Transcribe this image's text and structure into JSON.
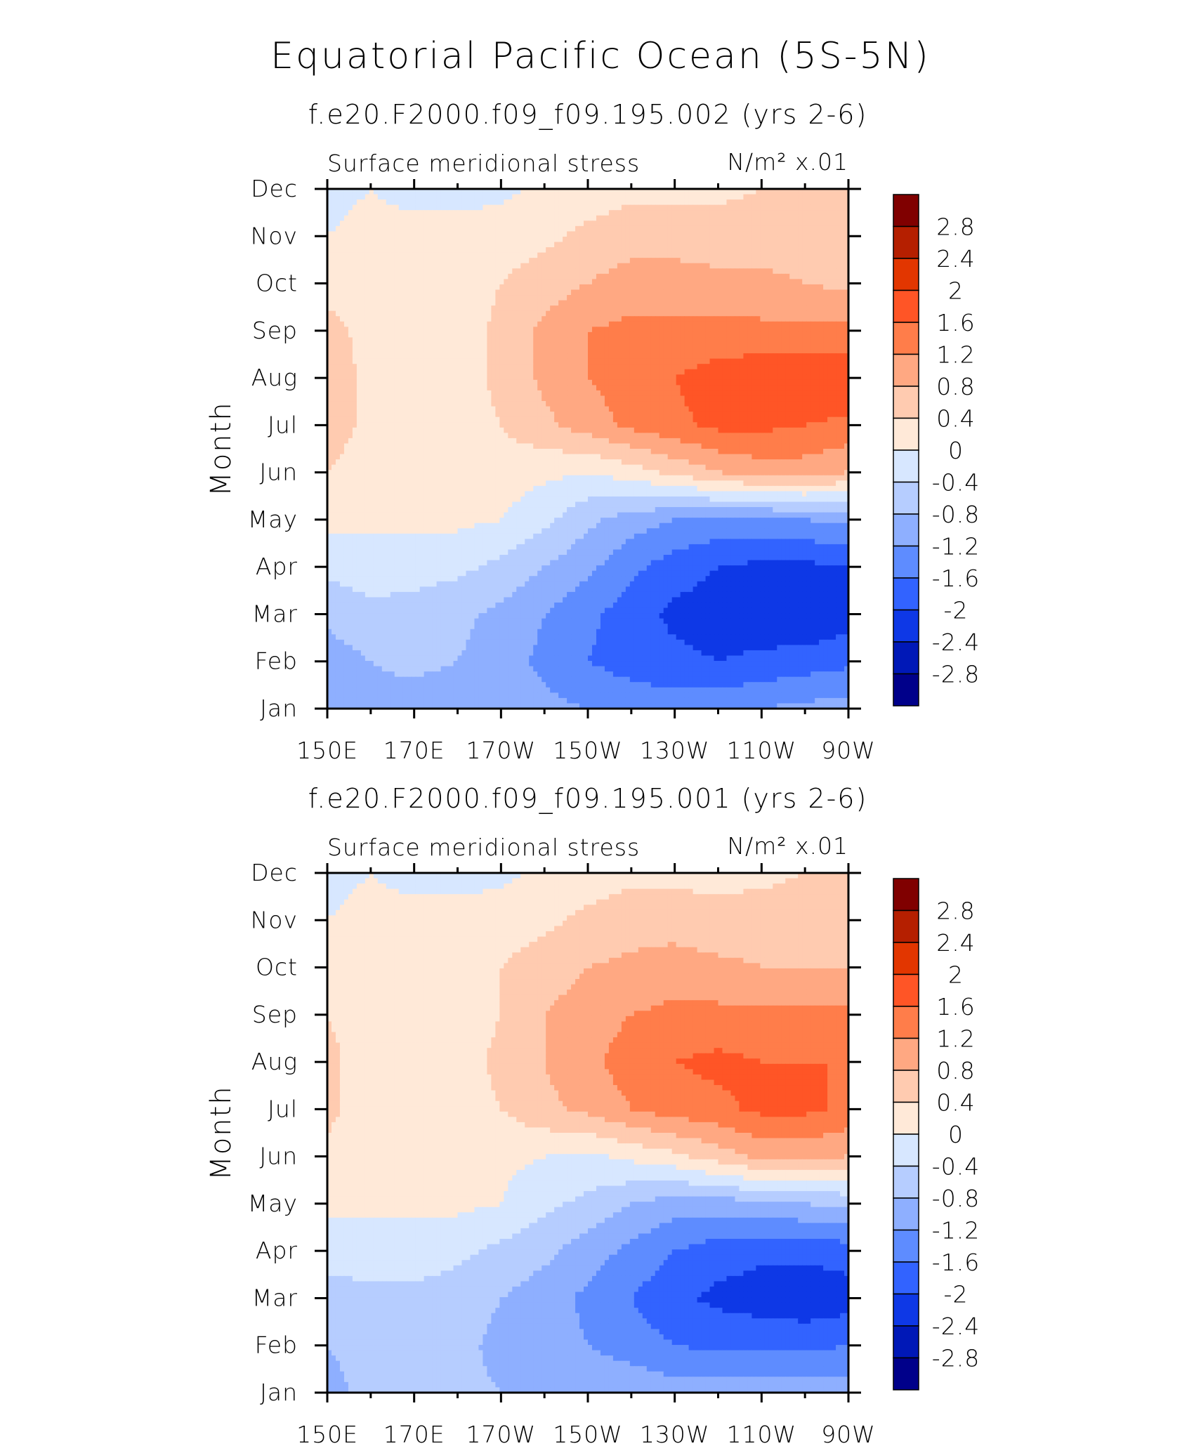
{
  "figure": {
    "title": "Equatorial Pacific Ocean (5S-5N)"
  },
  "colorbar_levels": [
    "2.8",
    "2.4",
    "2",
    "1.6",
    "1.2",
    "0.8",
    "0.4",
    "0",
    "-0.4",
    "-0.8",
    "-1.2",
    "-1.6",
    "-2",
    "-2.4",
    "-2.8"
  ],
  "colors": [
    "#800000",
    "#b51f00",
    "#e23600",
    "#ff5526",
    "#ff7d4a",
    "#ffa882",
    "#ffcbb0",
    "#ffe9d8",
    "#d7e7ff",
    "#b6cdff",
    "#8eafff",
    "#5e8cff",
    "#3263ff",
    "#0e38e6",
    "#0018b7",
    "#00008a"
  ],
  "chart_data": [
    {
      "type": "heatmap",
      "title": "f.e20.F2000.f09_f09.195.002 (yrs 2-6)",
      "left_label": "Surface meridional stress",
      "right_label": "N/m² x.01",
      "xlabel": "",
      "ylabel": "Month",
      "x_ticks": [
        "150E",
        "170E",
        "170W",
        "150W",
        "130W",
        "110W",
        "90W"
      ],
      "y_ticks": [
        "Jan",
        "Feb",
        "Mar",
        "Apr",
        "May",
        "Jun",
        "Jul",
        "Aug",
        "Sep",
        "Oct",
        "Nov",
        "Dec"
      ],
      "x_range": [
        "150E",
        "90W"
      ],
      "y_range": [
        "Jan",
        "Dec"
      ],
      "colorbar": [
        -2.8,
        -2.4,
        -2,
        -1.6,
        -1.2,
        -0.8,
        -0.4,
        0,
        0.4,
        0.8,
        1.2,
        1.6,
        2,
        2.4,
        2.8
      ],
      "grid_x_lon": [
        150,
        160,
        170,
        180,
        190,
        200,
        210,
        220,
        230,
        240,
        250,
        260,
        270
      ],
      "months": [
        "Jan",
        "Feb",
        "Mar",
        "Apr",
        "May",
        "Jun",
        "Jul",
        "Aug",
        "Sep",
        "Oct",
        "Nov",
        "Dec"
      ],
      "values": [
        [
          -1.1,
          -0.9,
          -1.0,
          -1.0,
          -0.9,
          -1.1,
          -1.2,
          -1.3,
          -1.4,
          -1.3,
          -1.2,
          -1.1,
          -1.0
        ],
        [
          -1.0,
          -0.8,
          -0.7,
          -0.8,
          -1.0,
          -1.3,
          -1.6,
          -1.8,
          -1.9,
          -2.0,
          -1.9,
          -1.8,
          -1.7
        ],
        [
          -0.7,
          -0.5,
          -0.6,
          -0.7,
          -0.9,
          -1.2,
          -1.5,
          -1.8,
          -2.1,
          -2.2,
          -2.3,
          -2.4,
          -2.2
        ],
        [
          -0.3,
          -0.2,
          -0.2,
          -0.3,
          -0.5,
          -0.8,
          -1.1,
          -1.5,
          -1.8,
          -2.0,
          -2.1,
          -2.1,
          -2.0
        ],
        [
          0.1,
          0.1,
          0.1,
          0.1,
          0.0,
          -0.3,
          -0.7,
          -1.0,
          -1.2,
          -1.3,
          -1.3,
          -1.2,
          -1.1
        ],
        [
          0.4,
          0.2,
          0.2,
          0.2,
          0.2,
          0.1,
          0.0,
          0.2,
          0.5,
          0.8,
          1.0,
          1.0,
          0.8
        ],
        [
          0.6,
          0.3,
          0.2,
          0.2,
          0.4,
          0.7,
          1.0,
          1.3,
          1.5,
          1.7,
          1.7,
          1.6,
          1.5
        ],
        [
          0.6,
          0.3,
          0.2,
          0.2,
          0.5,
          0.9,
          1.2,
          1.4,
          1.6,
          1.8,
          1.9,
          2.0,
          2.0
        ],
        [
          0.5,
          0.3,
          0.2,
          0.2,
          0.5,
          0.9,
          1.2,
          1.3,
          1.3,
          1.3,
          1.3,
          1.3,
          1.3
        ],
        [
          0.3,
          0.2,
          0.2,
          0.2,
          0.4,
          0.6,
          0.8,
          1.0,
          1.0,
          0.9,
          0.9,
          0.8,
          0.7
        ],
        [
          0.0,
          0.1,
          0.1,
          0.1,
          0.2,
          0.3,
          0.5,
          0.6,
          0.6,
          0.6,
          0.6,
          0.6,
          0.6
        ],
        [
          -0.1,
          0.0,
          -0.1,
          -0.1,
          -0.1,
          0.1,
          0.2,
          0.3,
          0.3,
          0.3,
          0.4,
          0.5,
          0.6
        ]
      ]
    },
    {
      "type": "heatmap",
      "title": "f.e20.F2000.f09_f09.195.001 (yrs 2-6)",
      "left_label": "Surface meridional stress",
      "right_label": "N/m² x.01",
      "xlabel": "",
      "ylabel": "Month",
      "x_ticks": [
        "150E",
        "170E",
        "170W",
        "150W",
        "130W",
        "110W",
        "90W"
      ],
      "y_ticks": [
        "Jan",
        "Feb",
        "Mar",
        "Apr",
        "May",
        "Jun",
        "Jul",
        "Aug",
        "Sep",
        "Oct",
        "Nov",
        "Dec"
      ],
      "x_range": [
        "150E",
        "90W"
      ],
      "y_range": [
        "Jan",
        "Dec"
      ],
      "colorbar": [
        -2.8,
        -2.4,
        -2,
        -1.6,
        -1.2,
        -0.8,
        -0.4,
        0,
        0.4,
        0.8,
        1.2,
        1.6,
        2,
        2.4,
        2.8
      ],
      "grid_x_lon": [
        150,
        160,
        170,
        180,
        190,
        200,
        210,
        220,
        230,
        240,
        250,
        260,
        270
      ],
      "months": [
        "Jan",
        "Feb",
        "Mar",
        "Apr",
        "May",
        "Jun",
        "Jul",
        "Aug",
        "Sep",
        "Oct",
        "Nov",
        "Dec"
      ],
      "values": [
        [
          -0.9,
          -0.7,
          -0.7,
          -0.7,
          -0.8,
          -0.8,
          -0.9,
          -0.9,
          -1.0,
          -1.0,
          -1.0,
          -1.0,
          -1.0
        ],
        [
          -0.8,
          -0.7,
          -0.7,
          -0.7,
          -0.9,
          -1.0,
          -1.2,
          -1.4,
          -1.6,
          -1.7,
          -1.7,
          -1.7,
          -1.6
        ],
        [
          -0.6,
          -0.5,
          -0.5,
          -0.6,
          -0.8,
          -1.0,
          -1.3,
          -1.6,
          -1.9,
          -2.1,
          -2.2,
          -2.3,
          -2.2
        ],
        [
          -0.2,
          -0.2,
          -0.2,
          -0.3,
          -0.5,
          -0.7,
          -1.0,
          -1.3,
          -1.6,
          -1.8,
          -1.9,
          -1.9,
          -1.8
        ],
        [
          0.1,
          0.1,
          0.1,
          0.1,
          0.0,
          -0.3,
          -0.5,
          -0.8,
          -1.0,
          -1.0,
          -0.9,
          -0.8,
          -0.7
        ],
        [
          0.3,
          0.2,
          0.1,
          0.1,
          0.1,
          0.0,
          -0.1,
          0.1,
          0.3,
          0.6,
          0.9,
          0.9,
          0.8
        ],
        [
          0.5,
          0.2,
          0.2,
          0.2,
          0.4,
          0.7,
          0.9,
          1.2,
          1.4,
          1.5,
          1.7,
          1.7,
          1.5
        ],
        [
          0.5,
          0.2,
          0.2,
          0.2,
          0.5,
          0.8,
          1.1,
          1.4,
          1.6,
          1.7,
          1.6,
          1.6,
          1.6
        ],
        [
          0.4,
          0.2,
          0.2,
          0.2,
          0.4,
          0.8,
          1.0,
          1.2,
          1.3,
          1.3,
          1.3,
          1.3,
          1.3
        ],
        [
          0.2,
          0.2,
          0.2,
          0.2,
          0.4,
          0.6,
          0.8,
          0.9,
          1.0,
          0.9,
          0.8,
          0.8,
          0.8
        ],
        [
          0.0,
          0.1,
          0.1,
          0.1,
          0.2,
          0.3,
          0.5,
          0.6,
          0.6,
          0.5,
          0.6,
          0.6,
          0.7
        ],
        [
          -0.1,
          0.0,
          -0.1,
          -0.1,
          -0.1,
          0.1,
          0.2,
          0.3,
          0.3,
          0.3,
          0.3,
          0.4,
          0.5
        ]
      ]
    }
  ]
}
